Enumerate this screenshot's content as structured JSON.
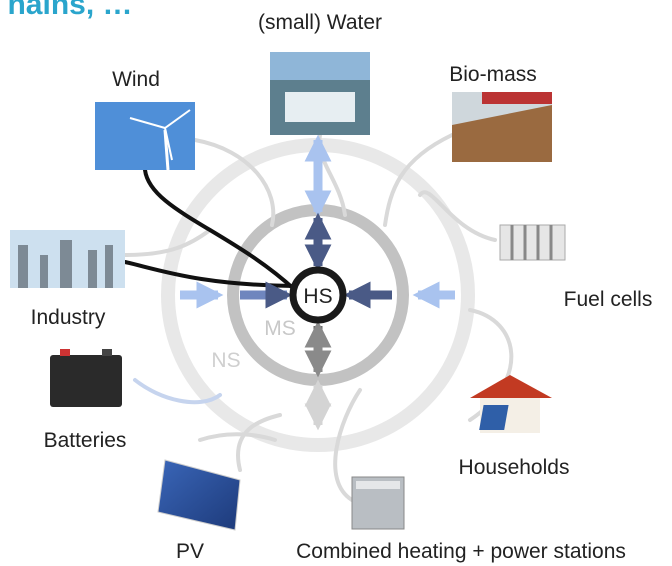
{
  "header": {
    "title": "hains, …"
  },
  "nodes": [
    {
      "label": "(small) Water"
    },
    {
      "label": "Wind"
    },
    {
      "label": "Bio-mass"
    },
    {
      "label": "Industry"
    },
    {
      "label": "Fuel cells"
    },
    {
      "label": "Batteries"
    },
    {
      "label": "Households"
    },
    {
      "label": "PV"
    },
    {
      "label": "Combined heating + power stations"
    }
  ],
  "levels": [
    {
      "label": "HS"
    },
    {
      "label": "MS"
    },
    {
      "label": "NS"
    }
  ]
}
